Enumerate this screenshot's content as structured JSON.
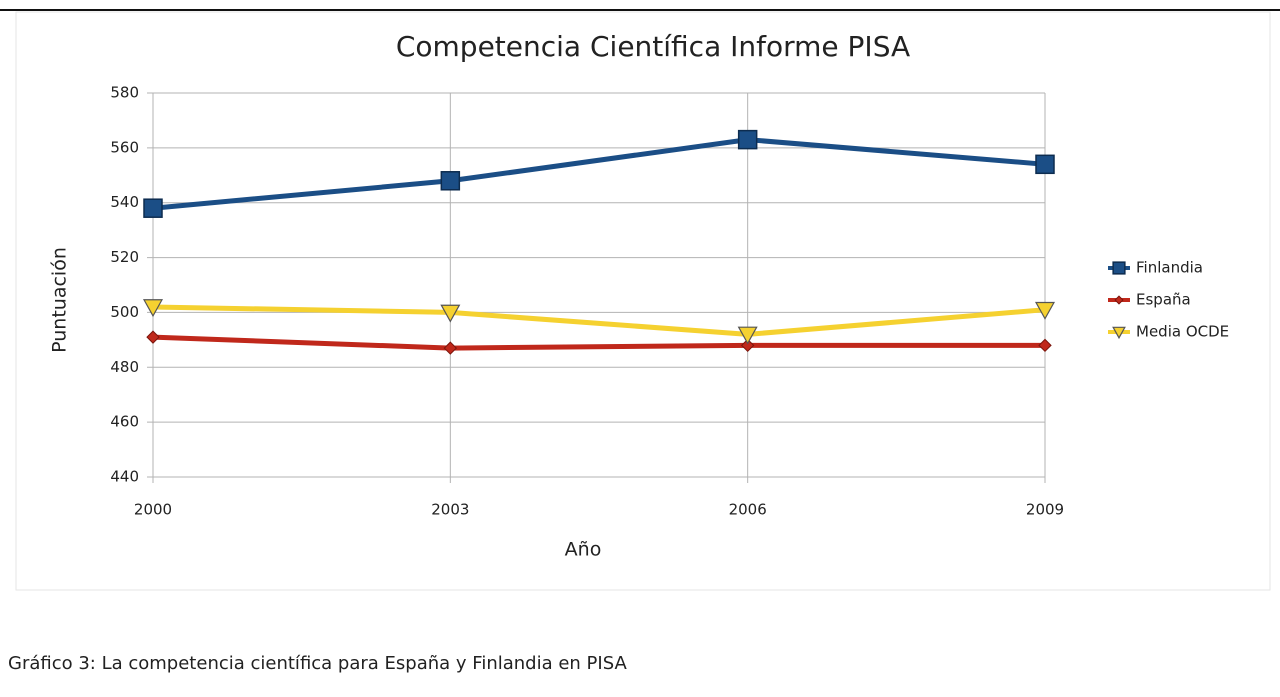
{
  "chart_data": {
    "type": "line",
    "title": "Competencia Científica Informe PISA",
    "x_label": "Año",
    "y_label": "Puntuación",
    "categories": [
      "2000",
      "2003",
      "2006",
      "2009"
    ],
    "series": [
      {
        "name": "Finlandia",
        "color": "#1b4e86",
        "marker": "square",
        "values": [
          538,
          548,
          563,
          554
        ]
      },
      {
        "name": "España",
        "color": "#c0281b",
        "marker": "diamond",
        "values": [
          491,
          487,
          488,
          488
        ]
      },
      {
        "name": "Media OCDE",
        "color": "#f5d130",
        "marker": "triangle-down",
        "values": [
          502,
          500,
          492,
          501
        ]
      }
    ],
    "ylim": [
      440,
      580
    ],
    "yticks": [
      440,
      460,
      480,
      500,
      520,
      540,
      560,
      580
    ],
    "grid": true,
    "legend": "right"
  },
  "caption": "Gráfico 3: La competencia científica para España y Finlandia en PISA"
}
